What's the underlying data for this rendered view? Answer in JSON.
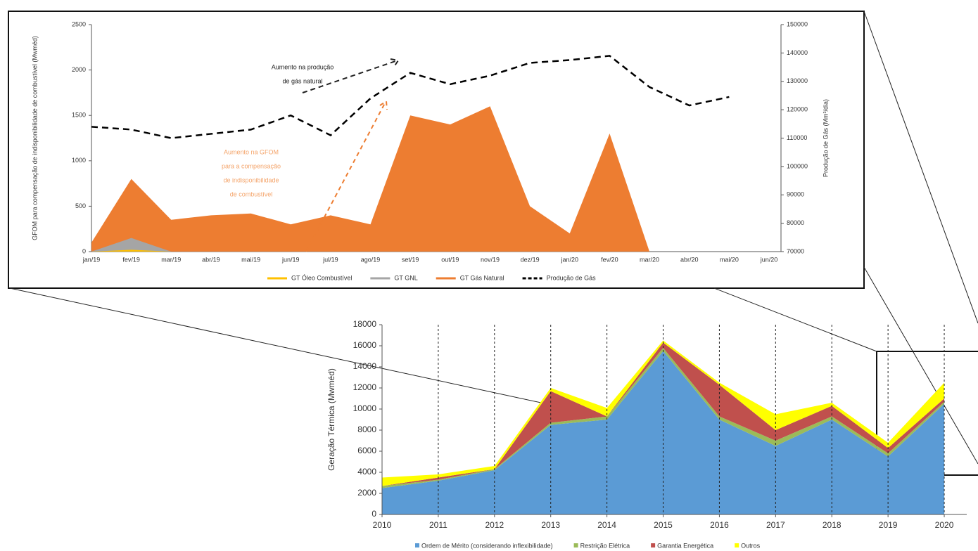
{
  "chart_data": [
    {
      "type": "area",
      "ylabel": "GFOM para compensação de indisponibilidade de combustível (Mwméd)",
      "y2label": "Produção de Gás (Mm³/dia)",
      "categories": [
        "jan/19",
        "fev/19",
        "mar/19",
        "abr/19",
        "mai/19",
        "jun/19",
        "jul/19",
        "ago/19",
        "set/19",
        "out/19",
        "nov/19",
        "dez/19",
        "jan/20",
        "fev/20",
        "mar/20",
        "abr/20",
        "mai/20",
        "jun/20"
      ],
      "series": [
        {
          "name": "GT Óleo Combustível",
          "color": "#ffc000",
          "values": [
            0,
            20,
            0,
            0,
            0,
            0,
            0,
            0,
            0,
            0,
            0,
            0,
            0,
            0,
            0,
            0,
            0,
            0
          ]
        },
        {
          "name": "GT GNL",
          "color": "#a5a5a5",
          "values": [
            0,
            150,
            0,
            0,
            0,
            0,
            0,
            0,
            0,
            0,
            0,
            0,
            0,
            0,
            0,
            0,
            0,
            0
          ]
        },
        {
          "name": "GT Gás Natural",
          "color": "#ed7d31",
          "values": [
            100,
            800,
            350,
            400,
            420,
            300,
            400,
            300,
            1500,
            1400,
            1600,
            500,
            200,
            1300,
            0,
            0,
            0,
            0
          ]
        },
        {
          "name": "Produção de Gás",
          "color": "#000000",
          "axis": "y2",
          "dashed": true,
          "values": [
            114000,
            113000,
            110000,
            111500,
            113000,
            118000,
            111000,
            124000,
            133000,
            129000,
            132000,
            136500,
            137500,
            139000,
            128000,
            121500,
            124500,
            null
          ]
        }
      ],
      "ylim": [
        0,
        2500
      ],
      "yticks": [
        0,
        500,
        1000,
        1500,
        2000,
        2500
      ],
      "y2lim": [
        70000,
        150000
      ],
      "y2ticks": [
        70000,
        80000,
        90000,
        100000,
        110000,
        120000,
        130000,
        140000,
        150000
      ],
      "annotations": [
        {
          "lines": [
            "Aumento na produção",
            "de gás natural"
          ],
          "color": "#222222"
        },
        {
          "lines": [
            "Aumento na GFOM",
            "para a compensação",
            "de indisponibilidade",
            "de combustível"
          ],
          "color": "#f4a46a"
        }
      ]
    },
    {
      "type": "stacked_area",
      "ylabel": "Geração Térmica (Mwméd)",
      "x": [
        2010,
        2011,
        2012,
        2013,
        2014,
        2015,
        2016,
        2017,
        2018,
        2019,
        2020
      ],
      "series": [
        {
          "name": "Ordem de Mérito (considerando inflexibilidade)",
          "color": "#5b9bd5",
          "values": [
            2500,
            3200,
            4200,
            8500,
            9000,
            15500,
            9000,
            6500,
            9000,
            5500,
            10500
          ]
        },
        {
          "name": "Restrição Elétrica",
          "color": "#9bbb59",
          "values": [
            200,
            100,
            100,
            200,
            300,
            300,
            300,
            500,
            300,
            300,
            200
          ]
        },
        {
          "name": "Garantia Energética",
          "color": "#c0504d",
          "values": [
            0,
            200,
            0,
            3000,
            0,
            500,
            3000,
            1000,
            1000,
            500,
            300
          ]
        },
        {
          "name": "Outros",
          "color": "#ffff00",
          "values": [
            800,
            300,
            300,
            300,
            800,
            200,
            200,
            1500,
            300,
            500,
            1500
          ]
        }
      ],
      "xlim": [
        2010,
        2020.4
      ],
      "xticks": [
        2010,
        2011,
        2012,
        2013,
        2014,
        2015,
        2016,
        2017,
        2018,
        2019,
        2020
      ],
      "ylim": [
        0,
        18000
      ],
      "yticks": [
        0,
        2000,
        4000,
        6000,
        8000,
        10000,
        12000,
        14000,
        16000,
        18000
      ]
    }
  ]
}
